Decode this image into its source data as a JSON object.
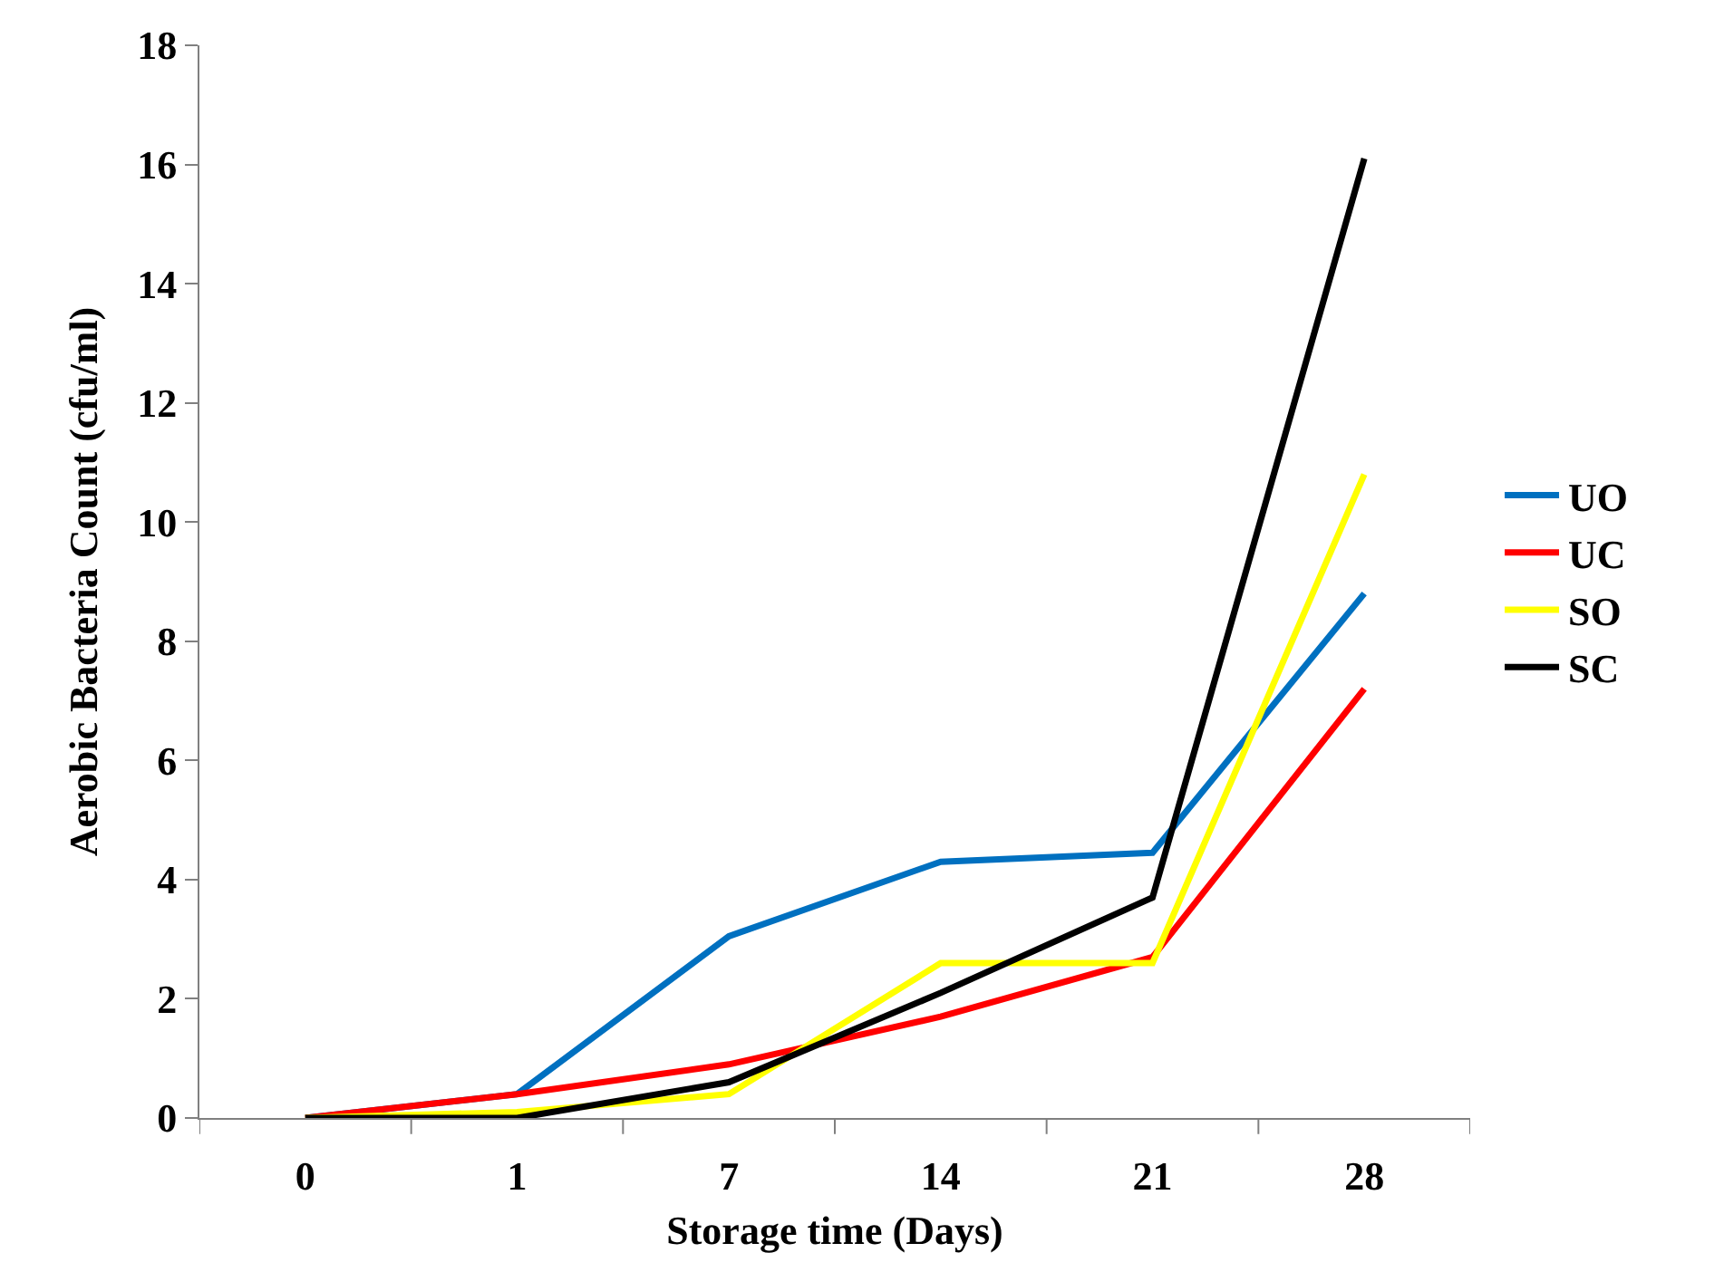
{
  "chart_data": {
    "type": "line",
    "xlabel": "Storage time (Days)",
    "ylabel": "Aerobic Bacteria Count (cfu/ml)",
    "categories": [
      "0",
      "1",
      "7",
      "14",
      "21",
      "28"
    ],
    "series": [
      {
        "name": "UO",
        "color": "#0070c0",
        "values": [
          0,
          0.4,
          3.05,
          4.3,
          4.45,
          8.8
        ]
      },
      {
        "name": "UC",
        "color": "#ff0000",
        "values": [
          0,
          0.4,
          0.9,
          1.7,
          2.7,
          7.2
        ]
      },
      {
        "name": "SO",
        "color": "#ffff00",
        "values": [
          0,
          0.1,
          0.4,
          2.6,
          2.6,
          10.8
        ]
      },
      {
        "name": "SC",
        "color": "#000000",
        "values": [
          0,
          0,
          0.6,
          2.1,
          3.7,
          16.1
        ]
      }
    ],
    "ylim": [
      0,
      18
    ],
    "yticks": [
      0,
      2,
      4,
      6,
      8,
      10,
      12,
      14,
      16,
      18
    ],
    "legend": "right",
    "marker": "none",
    "line_style": "solid"
  }
}
